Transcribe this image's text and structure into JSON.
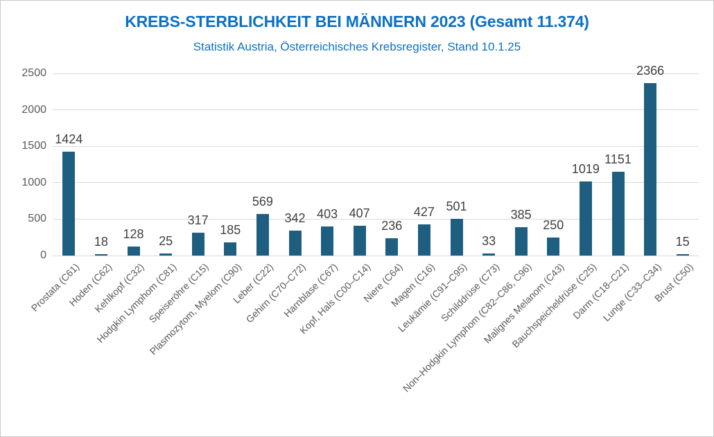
{
  "chart_data": {
    "type": "bar",
    "title": "KREBS-STERBLICHKEIT BEI MÄNNERN 2023 (Gesamt 11.374)",
    "subtitle": "Statistik Austria, Österreichisches Krebsregister, Stand 10.1.25",
    "categories": [
      "Prostata (C61)",
      "Hoden (C62)",
      "Kehlkopf (C32)",
      "Hodgkin Lymphom (C81)",
      "Speiseröhre (C15)",
      "Plasmozytom, Myelom (C90)",
      "Leber (C22)",
      "Gehirn (C70–C72)",
      "Harnblase (C67)",
      "Kopf, Hals (C00–C14)",
      "Niere (C64)",
      "Magen (C16)",
      "Leukämie (C91–C95)",
      "Schilddrüse (C73)",
      "Non–Hodgkin Lymphom (C82–C86, C96)",
      "Malignes Melanom (C43)",
      "Bauchspeicheldrüse (C25)",
      "Darm (C18–C21)",
      "Lunge (C33–C34)",
      "Brust (C50)"
    ],
    "values": [
      1424,
      18,
      128,
      25,
      317,
      185,
      569,
      342,
      403,
      407,
      236,
      427,
      501,
      33,
      385,
      250,
      1019,
      1151,
      2366,
      15
    ],
    "ylim": [
      0,
      2500
    ],
    "yticks": [
      0,
      500,
      1000,
      1500,
      2000,
      2500
    ],
    "grid": true,
    "legend": "none",
    "xlabel": "",
    "ylabel": "",
    "colors": {
      "bar": "#1E5E80",
      "title": "#0C70C4",
      "subtitle": "#0C70C4",
      "gridline": "#D9D9D9",
      "y_tick_label": "#595959",
      "x_tick_label": "#595959",
      "value_label": "#404040"
    }
  }
}
